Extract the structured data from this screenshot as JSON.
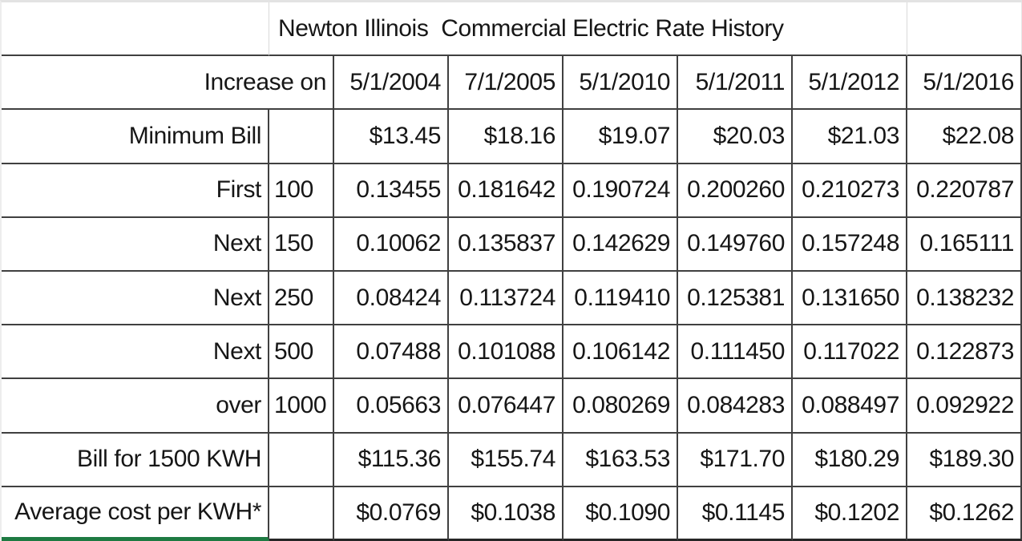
{
  "chart_data": {
    "type": "table",
    "title": "Newton Illinois  Commercial Electric Rate History",
    "header_label": "Increase on",
    "columns": [
      "5/1/2004",
      "7/1/2005",
      "5/1/2010",
      "5/1/2011",
      "5/1/2012",
      "5/1/2016"
    ],
    "rows": [
      {
        "label": "Minimum Bill",
        "tier": "",
        "values": [
          "$13.45",
          "$18.16",
          "$19.07",
          "$20.03",
          "$21.03",
          "$22.08"
        ]
      },
      {
        "label": "First",
        "tier": "100",
        "values": [
          "0.13455",
          "0.181642",
          "0.190724",
          "0.200260",
          "0.210273",
          "0.220787"
        ]
      },
      {
        "label": "Next",
        "tier": "150",
        "values": [
          "0.10062",
          "0.135837",
          "0.142629",
          "0.149760",
          "0.157248",
          "0.165111"
        ]
      },
      {
        "label": "Next",
        "tier": "250",
        "values": [
          "0.08424",
          "0.113724",
          "0.119410",
          "0.125381",
          "0.131650",
          "0.138232"
        ]
      },
      {
        "label": "Next",
        "tier": "500",
        "values": [
          "0.07488",
          "0.101088",
          "0.106142",
          "0.111450",
          "0.117022",
          "0.122873"
        ]
      },
      {
        "label": "over",
        "tier": "1000",
        "values": [
          "0.05663",
          "0.076447",
          "0.080269",
          "0.084283",
          "0.088497",
          "0.092922"
        ]
      },
      {
        "label": "Bill for 1500 KWH",
        "tier": "",
        "values": [
          "$115.36",
          "$155.74",
          "$163.53",
          "$171.70",
          "$180.29",
          "$189.30"
        ]
      },
      {
        "label": "Average cost per KWH*",
        "tier": "",
        "values": [
          "$0.0769",
          "$0.1038",
          "$0.1090",
          "$0.1145",
          "$0.1202",
          "$0.1262"
        ]
      }
    ],
    "layout": {
      "grid": "on",
      "header_align": "right",
      "value_align": "right",
      "tier_align": "left"
    }
  },
  "colors": {
    "cell_border_dark": "#404040",
    "gridline_light": "#d9d9d9",
    "selection_green": "#1e7a42",
    "background": "#ffffff",
    "text": "#161616"
  }
}
